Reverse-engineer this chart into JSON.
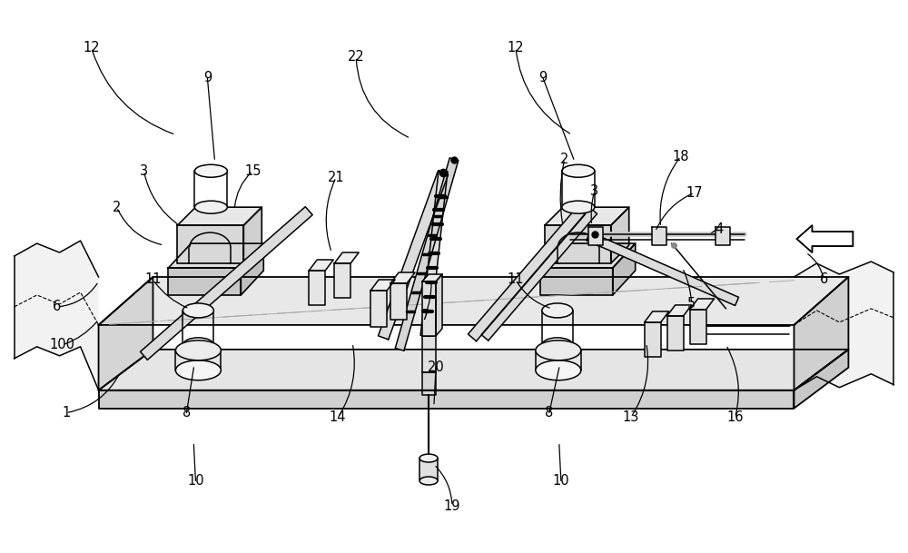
{
  "bg_color": "#ffffff",
  "lc": "#1a1a1a",
  "fig_w": 10.0,
  "fig_h": 6.09,
  "lw": 1.1,
  "labels": [
    [
      "12",
      100,
      52,
      193,
      148,
      0.25
    ],
    [
      "9",
      228,
      85,
      236,
      175,
      0.0
    ],
    [
      "3",
      158,
      188,
      197,
      248,
      0.2
    ],
    [
      "2",
      128,
      228,
      180,
      270,
      0.25
    ],
    [
      "15",
      278,
      188,
      258,
      230,
      0.2
    ],
    [
      "6",
      62,
      338,
      108,
      310,
      0.25
    ],
    [
      "1",
      72,
      455,
      132,
      410,
      0.25
    ],
    [
      "100",
      68,
      380,
      108,
      352,
      0.15
    ],
    [
      "11",
      168,
      308,
      208,
      340,
      0.15
    ],
    [
      "8",
      205,
      455,
      213,
      405,
      0.0
    ],
    [
      "10",
      215,
      530,
      213,
      490,
      0.0
    ],
    [
      "21",
      370,
      195,
      365,
      278,
      0.2
    ],
    [
      "14",
      372,
      460,
      388,
      378,
      0.2
    ],
    [
      "22",
      392,
      62,
      452,
      152,
      0.3
    ],
    [
      "7",
      468,
      348,
      475,
      310,
      0.1
    ],
    [
      "20",
      480,
      405,
      478,
      445,
      0.0
    ],
    [
      "19",
      498,
      558,
      478,
      512,
      0.2
    ],
    [
      "12",
      568,
      52,
      630,
      148,
      0.25
    ],
    [
      "9",
      598,
      85,
      632,
      175,
      0.0
    ],
    [
      "2",
      622,
      175,
      620,
      248,
      0.1
    ],
    [
      "3",
      655,
      210,
      652,
      248,
      0.1
    ],
    [
      "18",
      750,
      172,
      728,
      250,
      0.2
    ],
    [
      "17",
      765,
      212,
      722,
      255,
      0.2
    ],
    [
      "4",
      792,
      252,
      782,
      258,
      0.1
    ],
    [
      "8",
      605,
      455,
      616,
      405,
      0.0
    ],
    [
      "10",
      618,
      530,
      616,
      490,
      0.0
    ],
    [
      "11",
      568,
      308,
      608,
      340,
      0.2
    ],
    [
      "5",
      762,
      335,
      752,
      295,
      0.1
    ],
    [
      "13",
      695,
      460,
      712,
      378,
      0.2
    ],
    [
      "16",
      810,
      460,
      800,
      380,
      0.2
    ],
    [
      "6",
      908,
      308,
      888,
      278,
      0.2
    ]
  ]
}
